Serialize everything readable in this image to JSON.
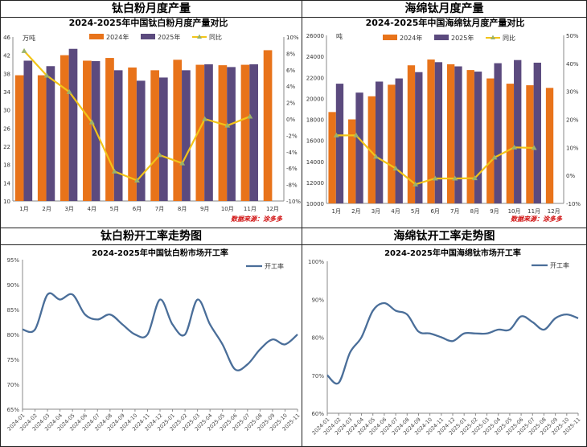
{
  "panels": [
    {
      "title": "钛白粉月度产量"
    },
    {
      "title": "海绵钛月度产量"
    },
    {
      "title": "钛白粉开工率走势图"
    },
    {
      "title": "海绵钛开工率走势图"
    }
  ],
  "source": "数据来源：涂多多",
  "colors": {
    "y2024": "#E8731A",
    "y2025": "#5B4A7E",
    "yoy": "#F2C418",
    "yoy_marker": "#9BB36A",
    "rate": "#4A6E99"
  },
  "chart_data": [
    {
      "type": "bar",
      "title": "2024-2025年中国钛白粉月度产量对比",
      "unit": "万吨",
      "categories": [
        "1月",
        "2月",
        "3月",
        "4月",
        "5月",
        "6月",
        "7月",
        "8月",
        "9月",
        "10月",
        "11月",
        "12月"
      ],
      "series": [
        {
          "name": "2024年",
          "values": [
            37.6,
            37.6,
            42.0,
            40.8,
            41.4,
            39.3,
            38.7,
            41.0,
            39.9,
            39.8,
            39.9,
            43.1
          ]
        },
        {
          "name": "2025年",
          "values": [
            40.8,
            39.6,
            43.4,
            40.7,
            38.7,
            36.4,
            37.1,
            38.7,
            40.0,
            39.4,
            40.0,
            null
          ]
        },
        {
          "name": "同比",
          "axis": "right",
          "type": "line",
          "values": [
            8.3,
            5.3,
            3.3,
            -0.4,
            -6.4,
            -7.5,
            -4.4,
            -5.4,
            0.0,
            -0.8,
            0.3,
            null
          ]
        }
      ],
      "ylim": [
        10,
        46
      ],
      "yticks": [
        10,
        14,
        18,
        22,
        26,
        30,
        34,
        38,
        42,
        46
      ],
      "y2lim": [
        -10,
        10
      ],
      "y2ticks": [
        -10,
        -8,
        -6,
        -4,
        -2,
        0,
        2,
        4,
        6,
        8,
        10
      ],
      "y2unit": "%",
      "legend": "top"
    },
    {
      "type": "bar",
      "title": "2024-2025年中国海绵钛月度产量对比",
      "unit": "吨",
      "categories": [
        "1月",
        "2月",
        "3月",
        "4月",
        "5月",
        "6月",
        "7月",
        "8月",
        "9月",
        "10月",
        "11月",
        "12月"
      ],
      "series": [
        {
          "name": "2024年",
          "values": [
            18700,
            18000,
            20200,
            21300,
            23150,
            23700,
            23250,
            22700,
            21900,
            21400,
            21250,
            21000
          ]
        },
        {
          "name": "2025年",
          "values": [
            21400,
            20550,
            21600,
            21900,
            22500,
            23450,
            23050,
            22550,
            23350,
            23650,
            23400,
            null
          ]
        },
        {
          "name": "同比",
          "axis": "right",
          "type": "line",
          "values": [
            14.3,
            14.3,
            6.7,
            2.5,
            -3.2,
            -1.1,
            -1.1,
            -1.0,
            6.4,
            10.0,
            9.8,
            null
          ]
        }
      ],
      "ylim": [
        10000,
        26000
      ],
      "yticks": [
        10000,
        12000,
        14000,
        16000,
        18000,
        20000,
        22000,
        24000,
        26000
      ],
      "y2lim": [
        -10,
        50
      ],
      "y2ticks": [
        -10,
        0,
        10,
        20,
        30,
        40,
        50
      ],
      "y2unit": "%",
      "legend": "top"
    },
    {
      "type": "line",
      "title": "2024-2025年中国钛白粉市场开工率",
      "x": [
        "2024-01",
        "2024-02",
        "2024-03",
        "2024-04",
        "2024-05",
        "2024-06",
        "2024-07",
        "2024-08",
        "2024-09",
        "2024-10",
        "2024-11",
        "2024-12",
        "2025-01",
        "2025-02",
        "2025-03",
        "2025-04",
        "2025-05",
        "2025-06",
        "2025-07",
        "2025-08",
        "2025-09",
        "2025-10",
        "2025-11"
      ],
      "series": [
        {
          "name": "开工率",
          "values": [
            81,
            81,
            88,
            87,
            88,
            84,
            83,
            84,
            82,
            80,
            80,
            87,
            82,
            80,
            87,
            82,
            78,
            73,
            74,
            77,
            79,
            78,
            80
          ]
        }
      ],
      "ylim": [
        65,
        95
      ],
      "yticks": [
        65,
        70,
        75,
        80,
        85,
        90,
        95
      ],
      "yunit": "%",
      "legend": "top-right"
    },
    {
      "type": "line",
      "title": "2024-2025年中国海绵钛市场开工率",
      "x": [
        "2024-01",
        "2024-02",
        "2024-03",
        "2024-04",
        "2024-05",
        "2024-06",
        "2024-07",
        "2024-08",
        "2024-09",
        "2024-10",
        "2024-11",
        "2024-12",
        "2025-01",
        "2025-02",
        "2025-03",
        "2025-04",
        "2025-05",
        "2025-06",
        "2025-07",
        "2025-08",
        "2025-09",
        "2025-10",
        "2025-11"
      ],
      "series": [
        {
          "name": "开工率",
          "values": [
            70,
            68,
            76,
            80,
            87,
            89,
            87,
            86,
            81.5,
            81,
            80,
            79,
            81,
            81,
            81,
            82,
            82,
            85.5,
            84,
            82,
            85,
            86,
            85
          ]
        }
      ],
      "ylim": [
        60,
        100
      ],
      "yticks": [
        60,
        70,
        80,
        90,
        100
      ],
      "yunit": "%",
      "legend": "top-right"
    }
  ]
}
